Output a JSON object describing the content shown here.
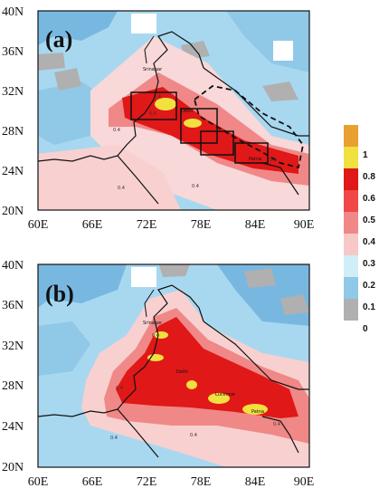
{
  "panels": [
    {
      "label": "(a)",
      "y_ticks": [
        "40N",
        "36N",
        "32N",
        "28N",
        "24N",
        "20N"
      ],
      "x_ticks": [
        "60E",
        "66E",
        "72E",
        "78E",
        "84E",
        "90E"
      ],
      "cities": [
        "Srinagar",
        "Delhi",
        "Patna"
      ],
      "contour_labels": [
        "0.4",
        "0.4",
        "0.4",
        "0.4",
        "0.4",
        "0.6"
      ],
      "boxes": 4
    },
    {
      "label": "(b)",
      "y_ticks": [
        "40N",
        "36N",
        "32N",
        "28N",
        "24N",
        "20N"
      ],
      "x_ticks": [
        "60E",
        "66E",
        "72E",
        "78E",
        "84E",
        "90E"
      ],
      "cities": [
        "Srinagar",
        "Delhi",
        "Lucknow",
        "Patna"
      ],
      "contour_labels": [
        "0.4",
        "0.4",
        "0.4",
        "0.4",
        "0.4"
      ]
    }
  ],
  "colorbar": {
    "labels": [
      "1",
      "0.8",
      "0.6",
      "0.5",
      "0.4",
      "0.3",
      "0.2",
      "0.1",
      "0"
    ],
    "colors": [
      "#e8a030",
      "#f0e040",
      "#e01818",
      "#f04848",
      "#f08888",
      "#f8c8c8",
      "#d0eef8",
      "#90c8e8",
      "#b0b0b0"
    ]
  }
}
